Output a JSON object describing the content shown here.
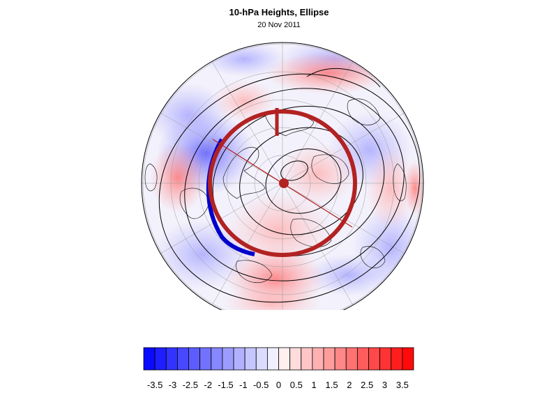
{
  "title": "10-hPa Heights, Ellipse",
  "subtitle": "20 Nov 2011",
  "colorbar": {
    "colors": [
      "#0a0aff",
      "#1e1eff",
      "#3333ff",
      "#4848ff",
      "#5d5dff",
      "#7272ff",
      "#8787ff",
      "#9c9cff",
      "#b1b1ff",
      "#c6c6ff",
      "#dbdbff",
      "#efefff",
      "#ffefef",
      "#ffdbdb",
      "#ffc6c6",
      "#ffb1b1",
      "#ff9c9c",
      "#ff8787",
      "#ff7272",
      "#ff5d5d",
      "#ff4848",
      "#ff3333",
      "#ff1e1e",
      "#ff0a0a"
    ],
    "tick_labels": [
      "-3.5",
      "-3",
      "-2.5",
      "-2",
      "-1.5",
      "-1",
      "-0.5",
      "0",
      "0.5",
      "1",
      "1.5",
      "2",
      "2.5",
      "3",
      "3.5"
    ]
  },
  "map": {
    "projection": "north polar stereographic",
    "ellipse_color": "#b22222",
    "negative_color": "#0000cc"
  }
}
